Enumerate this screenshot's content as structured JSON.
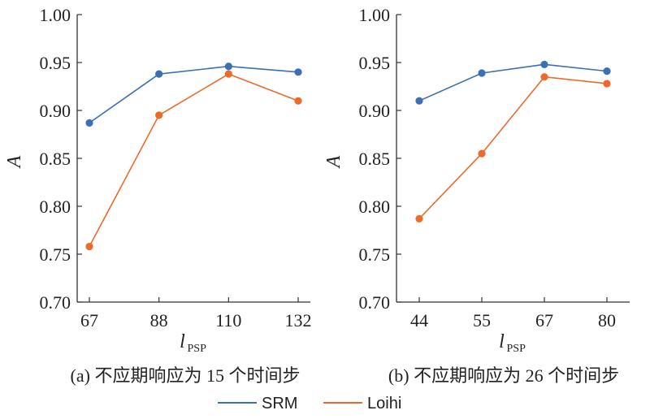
{
  "colors": {
    "SRM": "#3b6fb6",
    "Loihi": "#ee6a2a",
    "axis": "#333333"
  },
  "legend": [
    {
      "name": "SRM",
      "color": "#3b6fb6"
    },
    {
      "name": "Loihi",
      "color": "#ee6a2a"
    }
  ],
  "chart_data": [
    {
      "type": "line",
      "caption": "(a) 不应期响应为 15 个时间步",
      "ylabel": "A",
      "xlabel_main": "l",
      "xlabel_sub": "PSP",
      "categories": [
        "67",
        "88",
        "110",
        "132"
      ],
      "ylim": [
        0.7,
        1.0
      ],
      "yticks": [
        "0.70",
        "0.75",
        "0.80",
        "0.85",
        "0.90",
        "0.95",
        "1.00"
      ],
      "series": [
        {
          "name": "SRM",
          "values": [
            0.887,
            0.938,
            0.946,
            0.94
          ]
        },
        {
          "name": "Loihi",
          "values": [
            0.758,
            0.895,
            0.938,
            0.91
          ]
        }
      ]
    },
    {
      "type": "line",
      "caption": "(b) 不应期响应为 26 个时间步",
      "ylabel": "A",
      "xlabel_main": "l",
      "xlabel_sub": "PSP",
      "categories": [
        "44",
        "55",
        "67",
        "80"
      ],
      "ylim": [
        0.7,
        1.0
      ],
      "yticks": [
        "0.70",
        "0.75",
        "0.80",
        "0.85",
        "0.90",
        "0.95",
        "1.00"
      ],
      "series": [
        {
          "name": "SRM",
          "values": [
            0.91,
            0.939,
            0.948,
            0.941
          ]
        },
        {
          "name": "Loihi",
          "values": [
            0.787,
            0.855,
            0.935,
            0.928
          ]
        }
      ]
    }
  ]
}
